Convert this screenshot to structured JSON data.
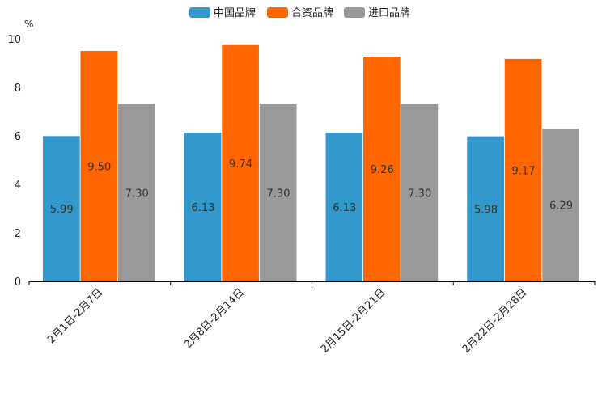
{
  "chart_data": {
    "type": "bar",
    "title": "",
    "xlabel": "",
    "ylabel": "",
    "unit": "%",
    "ylim": [
      0,
      10
    ],
    "yticks": [
      "0",
      "2",
      "4",
      "6",
      "8",
      "10"
    ],
    "categories": [
      "2月1日-2月7日",
      "2月8日-2月14日",
      "2月15日-2月21日",
      "2月22日-2月28日"
    ],
    "series": [
      {
        "name": "中国品牌",
        "color": "#3399cc",
        "values": [
          5.99,
          6.13,
          6.13,
          5.98
        ],
        "labels": [
          "5.99",
          "6.13",
          "6.13",
          "5.98"
        ]
      },
      {
        "name": "合资品牌",
        "color": "#ff6600",
        "values": [
          9.5,
          9.74,
          9.26,
          9.17
        ],
        "labels": [
          "9.50",
          "9.74",
          "9.26",
          "9.17"
        ]
      },
      {
        "name": "进口品牌",
        "color": "#999999",
        "values": [
          7.3,
          7.3,
          7.3,
          6.29
        ],
        "labels": [
          "7.30",
          "7.30",
          "7.30",
          "6.29"
        ]
      }
    ],
    "legend": "top-center",
    "grid": false
  }
}
